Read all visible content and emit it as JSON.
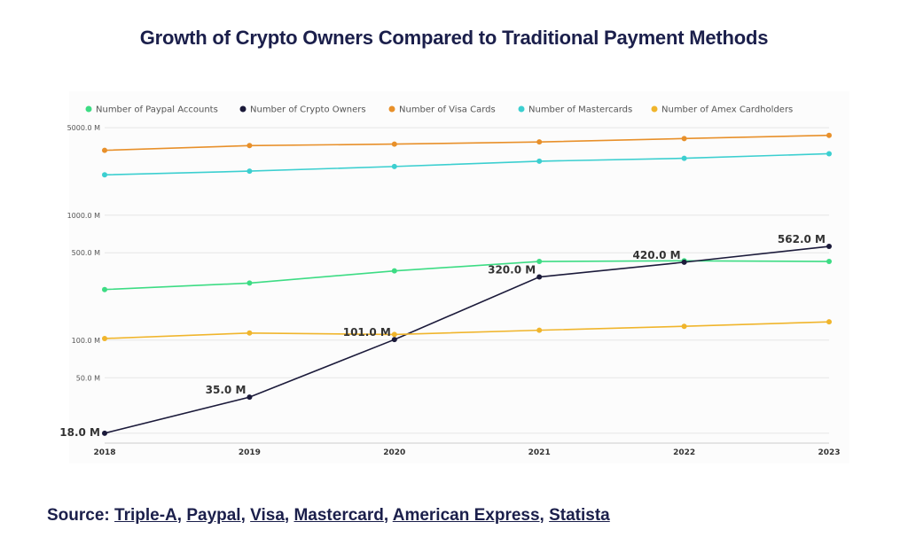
{
  "title": "Growth of Crypto Owners Compared to Traditional Payment Methods",
  "source": {
    "prefix": "Source:",
    "links": [
      "Triple-A",
      "Paypal",
      "Visa",
      "Mastercard",
      "American Express",
      "Statista"
    ]
  },
  "chart_data": {
    "type": "line",
    "title": "Growth of Crypto Owners Compared to Traditional Payment Methods",
    "x": [
      "2018",
      "2019",
      "2020",
      "2021",
      "2022",
      "2023"
    ],
    "yscale": "log",
    "ylim": [
      15,
      6000
    ],
    "yticks": [
      {
        "value": 5000,
        "label": "5000.0 M"
      },
      {
        "value": 1000,
        "label": "1000.0 M"
      },
      {
        "value": 500,
        "label": "500.0 M"
      },
      {
        "value": 100,
        "label": "100.0 M"
      },
      {
        "value": 50,
        "label": "50.0 M"
      },
      {
        "value": 18,
        "label": "18.0 M"
      }
    ],
    "grid": true,
    "legend_position": "top",
    "series": [
      {
        "name": "Number of Paypal Accounts",
        "color": "#3ddc84",
        "values": [
          254,
          286,
          358,
          426,
          431,
          426
        ],
        "labels": []
      },
      {
        "name": "Number of Crypto Owners",
        "color": "#1b1a3a",
        "values": [
          18,
          35,
          101,
          320,
          420,
          562
        ],
        "labels": [
          "18.0 M",
          "35.0 M",
          "101.0 M",
          "320.0 M",
          "420.0 M",
          "562.0 M"
        ]
      },
      {
        "name": "Number of Visa Cards",
        "color": "#e8902a",
        "values": [
          3300,
          3600,
          3700,
          3850,
          4100,
          4350
        ],
        "labels": []
      },
      {
        "name": "Number of Mastercards",
        "color": "#3ccfd0",
        "values": [
          2100,
          2250,
          2450,
          2700,
          2850,
          3100
        ],
        "labels": []
      },
      {
        "name": "Number of Amex Cardholders",
        "color": "#f0b52c",
        "values": [
          103,
          114,
          111,
          120,
          129,
          140
        ],
        "labels": []
      }
    ]
  }
}
